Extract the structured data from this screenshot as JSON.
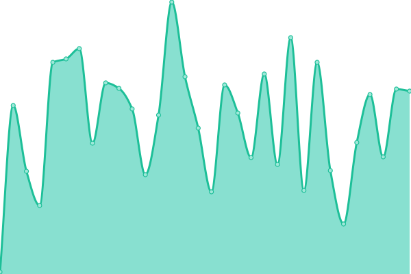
{
  "chart_data": {
    "type": "area",
    "title": "",
    "xlabel": "",
    "ylabel": "",
    "x": [
      0,
      1,
      2,
      3,
      4,
      5,
      6,
      7,
      8,
      9,
      10,
      11,
      12,
      13,
      14,
      15,
      16,
      17,
      18,
      19,
      20,
      21,
      22,
      23,
      24,
      25,
      26,
      27,
      28,
      29,
      30,
      31
    ],
    "values": [
      3,
      246,
      150,
      100,
      309,
      314,
      329,
      191,
      279,
      271,
      241,
      145,
      232,
      397,
      288,
      213,
      120,
      276,
      235,
      170,
      292,
      160,
      345,
      122,
      309,
      151,
      73,
      192,
      262,
      171,
      270,
      267
    ],
    "ylim": [
      0,
      400
    ],
    "grid": false,
    "axes_visible": false,
    "curve": "smooth",
    "markers": true,
    "colors": {
      "line": "#1dbf98",
      "fill": "#88e0d0",
      "marker_fill": "#9fe8d9"
    }
  }
}
